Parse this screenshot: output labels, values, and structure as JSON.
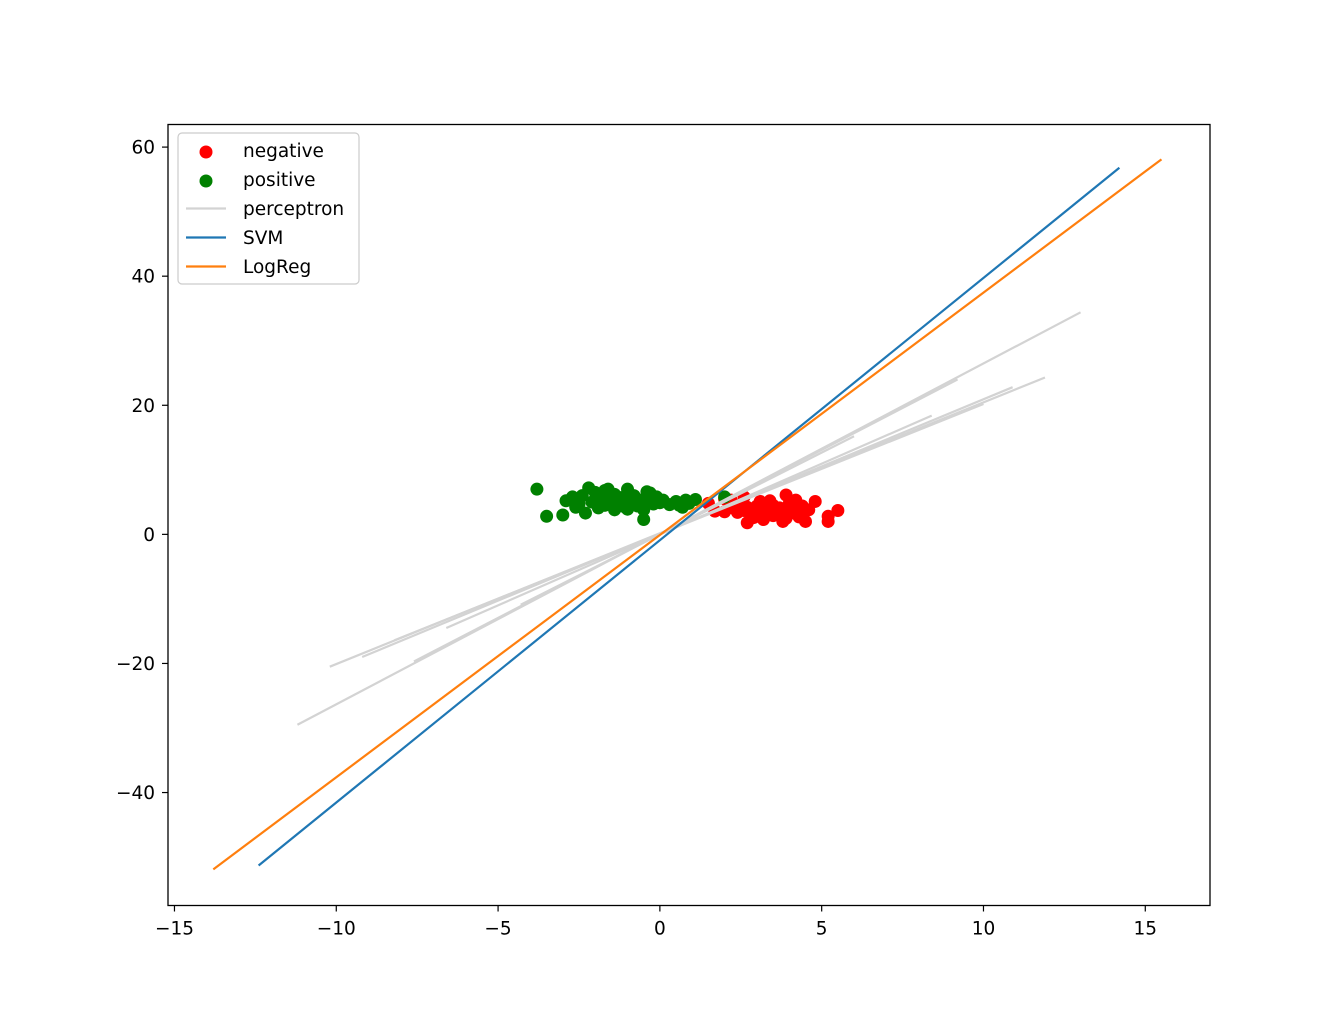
{
  "chart_data": {
    "type": "scatter",
    "title": "",
    "xlabel": "",
    "ylabel": "",
    "xlim": [
      -15.2,
      17.0
    ],
    "ylim": [
      -57.5,
      63.5
    ],
    "xticks": [
      -15,
      -10,
      -5,
      0,
      5,
      10,
      15
    ],
    "yticks": [
      -40,
      -20,
      0,
      20,
      40,
      60
    ],
    "grid": false,
    "legend_position": "upper left",
    "series": [
      {
        "name": "negative",
        "kind": "scatter",
        "color": "#ff0000",
        "x": [
          1.5,
          1.7,
          2.0,
          2.2,
          2.3,
          2.4,
          2.5,
          2.6,
          2.7,
          2.7,
          2.8,
          2.9,
          3.0,
          3.0,
          3.1,
          3.2,
          3.2,
          3.3,
          3.4,
          3.5,
          3.5,
          3.6,
          3.7,
          3.8,
          3.8,
          3.9,
          4.0,
          4.0,
          4.1,
          4.2,
          4.3,
          4.4,
          4.5,
          4.6,
          4.8,
          5.2,
          5.2,
          5.5,
          2.6,
          3.4,
          3.9,
          2.0,
          2.3
        ],
        "y": [
          4.8,
          3.6,
          3.5,
          5.3,
          4.0,
          3.4,
          4.6,
          3.7,
          1.8,
          4.2,
          3.3,
          2.6,
          4.4,
          3.0,
          5.1,
          2.3,
          4.0,
          3.6,
          5.2,
          2.9,
          4.5,
          3.3,
          4.1,
          2.0,
          3.7,
          6.1,
          4.8,
          3.2,
          3.9,
          5.3,
          2.7,
          4.4,
          2.0,
          3.8,
          5.1,
          2.0,
          2.8,
          3.7,
          5.8,
          4.1,
          2.5,
          5.5,
          4.6
        ]
      },
      {
        "name": "positive",
        "kind": "scatter",
        "color": "#008000",
        "x": [
          -3.8,
          -3.5,
          -3.0,
          -2.9,
          -2.7,
          -2.6,
          -2.4,
          -2.3,
          -2.2,
          -2.1,
          -2.0,
          -1.9,
          -1.8,
          -1.7,
          -1.6,
          -1.5,
          -1.4,
          -1.4,
          -1.3,
          -1.2,
          -1.1,
          -1.0,
          -1.0,
          -0.9,
          -0.8,
          -0.7,
          -0.6,
          -0.5,
          -0.4,
          -0.3,
          -0.2,
          -0.1,
          0.0,
          0.1,
          0.3,
          0.5,
          0.6,
          0.8,
          0.9,
          1.1,
          2.0,
          -0.5,
          -1.7,
          -2.5,
          -1.1,
          -0.3,
          0.7
        ],
        "y": [
          7.0,
          2.8,
          3.0,
          5.2,
          5.8,
          4.2,
          6.0,
          3.3,
          7.2,
          5.0,
          6.5,
          4.1,
          5.6,
          4.5,
          7.0,
          5.3,
          3.8,
          6.2,
          4.8,
          5.7,
          4.3,
          7.0,
          3.9,
          5.1,
          6.0,
          4.4,
          5.3,
          2.3,
          6.6,
          5.0,
          4.7,
          5.8,
          4.9,
          5.3,
          4.6,
          5.1,
          4.5,
          5.3,
          4.8,
          5.4,
          5.8,
          3.8,
          6.8,
          4.7,
          5.5,
          6.4,
          4.2
        ]
      },
      {
        "name": "perceptron",
        "kind": "lines",
        "color": "#d3d3d3",
        "lines": [
          [
            [
              -11.2,
              -29.5
            ],
            [
              13.0,
              34.4
            ]
          ],
          [
            [
              -10.2,
              -20.5
            ],
            [
              11.9,
              24.3
            ]
          ],
          [
            [
              -9.2,
              -19.0
            ],
            [
              10.9,
              22.8
            ]
          ],
          [
            [
              -8.2,
              -16.4
            ],
            [
              10.0,
              20.2
            ]
          ],
          [
            [
              -7.6,
              -19.7
            ],
            [
              9.2,
              24.0
            ]
          ],
          [
            [
              -6.6,
              -14.5
            ],
            [
              8.4,
              18.4
            ]
          ],
          [
            [
              -4.3,
              -10.9
            ],
            [
              6.0,
              15.2
            ]
          ]
        ]
      },
      {
        "name": "SVM",
        "kind": "line",
        "color": "#1f77b4",
        "x": [
          -12.4,
          14.2
        ],
        "y": [
          -51.3,
          56.8
        ]
      },
      {
        "name": "LogReg",
        "kind": "line",
        "color": "#ff7f0e",
        "x": [
          -13.8,
          15.5
        ],
        "y": [
          -51.9,
          58.1
        ]
      }
    ]
  }
}
